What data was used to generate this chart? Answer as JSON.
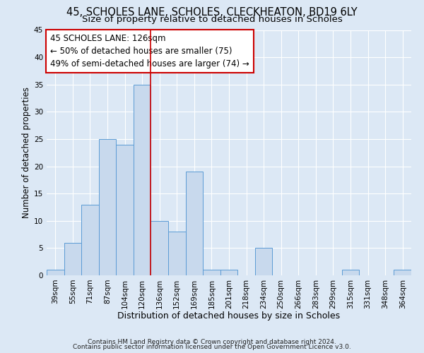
{
  "title1": "45, SCHOLES LANE, SCHOLES, CLECKHEATON, BD19 6LY",
  "title2": "Size of property relative to detached houses in Scholes",
  "xlabel": "Distribution of detached houses by size in Scholes",
  "ylabel": "Number of detached properties",
  "footer1": "Contains HM Land Registry data © Crown copyright and database right 2024.",
  "footer2": "Contains public sector information licensed under the Open Government Licence v3.0.",
  "annotation_title": "45 SCHOLES LANE: 126sqm",
  "annotation_line1": "← 50% of detached houses are smaller (75)",
  "annotation_line2": "49% of semi-detached houses are larger (74) →",
  "bar_labels": [
    "39sqm",
    "55sqm",
    "71sqm",
    "87sqm",
    "104sqm",
    "120sqm",
    "136sqm",
    "152sqm",
    "169sqm",
    "185sqm",
    "201sqm",
    "218sqm",
    "234sqm",
    "250sqm",
    "266sqm",
    "283sqm",
    "299sqm",
    "315sqm",
    "331sqm",
    "348sqm",
    "364sqm"
  ],
  "bar_values": [
    1,
    6,
    13,
    25,
    24,
    35,
    10,
    8,
    19,
    1,
    1,
    0,
    5,
    0,
    0,
    0,
    0,
    1,
    0,
    0,
    1
  ],
  "bar_color": "#c8d9ed",
  "bar_edge_color": "#5b9bd5",
  "ref_line_x": 5.5,
  "ref_line_color": "#cc0000",
  "ylim": [
    0,
    45
  ],
  "yticks": [
    0,
    5,
    10,
    15,
    20,
    25,
    30,
    35,
    40,
    45
  ],
  "bg_color": "#dce8f5",
  "plot_bg_color": "#dce8f5",
  "annotation_box_color": "#ffffff",
  "annotation_box_edge": "#cc0000",
  "title1_fontsize": 10.5,
  "title2_fontsize": 9.5,
  "xlabel_fontsize": 9,
  "ylabel_fontsize": 8.5,
  "tick_fontsize": 7.5,
  "annotation_fontsize": 8.5,
  "footer_fontsize": 6.5
}
